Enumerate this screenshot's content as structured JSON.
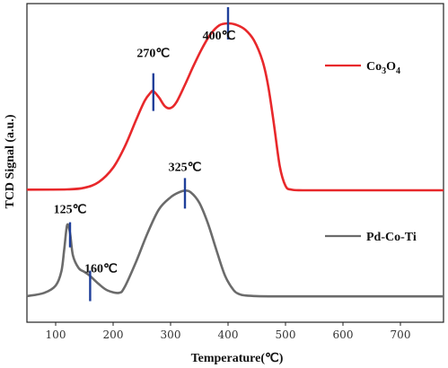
{
  "chart_data": {
    "type": "line",
    "xlabel": "Temperature(℃)",
    "ylabel": "TCD Signal (a.u.)",
    "xlim": [
      50,
      775
    ],
    "ylim": [
      0,
      100
    ],
    "x_ticks": [
      "100",
      "200",
      "300",
      "400",
      "500",
      "600",
      "700"
    ],
    "y_ticks_shown": false,
    "grid": false,
    "legend": [
      {
        "series": "Co3O4",
        "label_main": "Co",
        "label_sub1": "3",
        "label_mid": "O",
        "label_sub2": "4"
      },
      {
        "series": "Pd-Co-Ti",
        "label_main": "Pd-Co-Ti"
      }
    ],
    "series": [
      {
        "name": "Co3O4",
        "color": "#e8282b",
        "x": [
          50,
          120,
          150,
          175,
          200,
          220,
          240,
          255,
          265,
          270,
          280,
          290,
          300,
          310,
          325,
          340,
          355,
          370,
          385,
          400,
          415,
          430,
          445,
          460,
          470,
          480,
          490,
          500,
          510,
          530,
          600,
          700,
          775
        ],
        "y": [
          41.6,
          41.7,
          42.2,
          44.0,
          48.5,
          55.0,
          63.5,
          69.5,
          72.0,
          72.5,
          70.5,
          67.8,
          67.2,
          69.0,
          74.5,
          80.5,
          86.0,
          90.5,
          93.2,
          93.8,
          93.3,
          91.8,
          88.5,
          82.0,
          74.0,
          62.0,
          49.0,
          42.8,
          41.6,
          41.4,
          41.4,
          41.4,
          41.4
        ]
      },
      {
        "name": "Pd-Co-Ti",
        "color": "#6b6b6b",
        "x": [
          50,
          80,
          100,
          110,
          115,
          120,
          125,
          130,
          140,
          150,
          160,
          175,
          190,
          210,
          220,
          240,
          260,
          280,
          300,
          315,
          325,
          335,
          350,
          365,
          380,
          395,
          410,
          420,
          430,
          450,
          500,
          600,
          700,
          775
        ],
        "y": [
          8.2,
          9.2,
          11.5,
          16.0,
          23.0,
          30.5,
          28.0,
          21.0,
          17.0,
          15.8,
          14.5,
          12.0,
          10.0,
          9.2,
          11.0,
          19.0,
          28.0,
          35.5,
          39.2,
          40.8,
          41.3,
          40.8,
          37.5,
          31.0,
          22.5,
          14.5,
          10.0,
          8.8,
          8.4,
          8.2,
          8.1,
          8.1,
          8.1,
          8.1
        ]
      }
    ],
    "peak_markers": [
      {
        "x": 270,
        "label": "270℃",
        "series": "Co3O4"
      },
      {
        "x": 400,
        "label": "400℃",
        "series": "Co3O4"
      },
      {
        "x": 125,
        "label": "125℃",
        "series": "Pd-Co-Ti"
      },
      {
        "x": 160,
        "label": "160℃",
        "series": "Pd-Co-Ti"
      },
      {
        "x": 325,
        "label": "325℃",
        "series": "Pd-Co-Ti"
      }
    ],
    "marker_color": "#1f3f9a"
  }
}
